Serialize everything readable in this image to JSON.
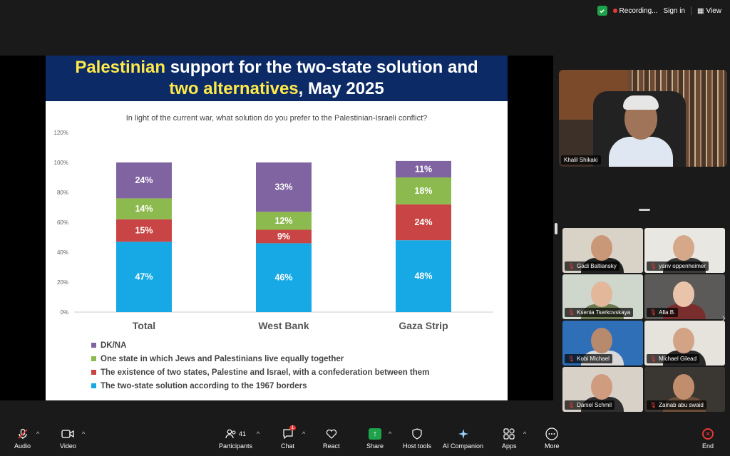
{
  "topbar": {
    "recording_label": "Recording...",
    "sign_in_label": "Sign in",
    "view_label": "View",
    "colors": {
      "shield": "#1fa34a",
      "recording_dot": "#e53935"
    }
  },
  "slide": {
    "title_line1_highlight": "Palestinian",
    "title_line1_rest": " support for the two-state solution and",
    "title_line2_highlight": "two alternatives",
    "title_line2_rest": ", May 2025",
    "question": "In light of the current war, what solution do you prefer to the Palestinian-Israeli conflict?",
    "colors": {
      "header_bg": "#0c2b66",
      "highlight": "#ffe94a"
    }
  },
  "chart_data": {
    "type": "bar",
    "stacked": true,
    "title": "",
    "xlabel": "",
    "ylabel": "",
    "ylim": [
      0,
      120
    ],
    "y_ticks": [
      "0%",
      "20%",
      "40%",
      "60%",
      "80%",
      "100%",
      "120%"
    ],
    "categories": [
      "Total",
      "West Bank",
      "Gaza Strip"
    ],
    "series": [
      {
        "name": "The two-state solution according to the 1967 borders",
        "color": "#16a9e5",
        "values": [
          47,
          46,
          48
        ],
        "labels": [
          "47%",
          "46%",
          "48%"
        ]
      },
      {
        "name": "The existence of two states, Palestine and Israel, with a confederation between them",
        "color": "#c94545",
        "values": [
          15,
          9,
          24
        ],
        "labels": [
          "15%",
          "9%",
          "24%"
        ]
      },
      {
        "name": "One state in which Jews and Palestinians live equally together",
        "color": "#8cba4e",
        "values": [
          14,
          12,
          18
        ],
        "labels": [
          "14%",
          "12%",
          "18%"
        ]
      },
      {
        "name": "DK/NA",
        "color": "#8064a2",
        "values": [
          24,
          33,
          11
        ],
        "labels": [
          "24%",
          "33%",
          "11%"
        ]
      }
    ],
    "legend_order": [
      "DK/NA",
      "One state in which Jews and Palestinians live equally together",
      "The existence of two states, Palestine and Israel, with a confederation between them",
      "The two-state solution according to the 1967 borders"
    ],
    "legend_placement": "bottom-left",
    "grid": false
  },
  "participants": {
    "speaker": {
      "name": "Khalil Shikaki"
    },
    "gallery": [
      {
        "name": "Gadi Baltiansky",
        "bg": "#d9d2c6",
        "skin": "#c99878",
        "shirt": "#222"
      },
      {
        "name": "yariv oppenheimer",
        "bg": "#e9e7e2",
        "skin": "#d4a888",
        "shirt": "#3b3b3b"
      },
      {
        "name": "Ksenia Tserkovskaya",
        "bg": "#cfd6cc",
        "skin": "#e2b79a",
        "shirt": "#6c7a52"
      },
      {
        "name": "Alla B.",
        "bg": "#5c5a58",
        "skin": "#e9c4aa",
        "shirt": "#7a2d2d"
      },
      {
        "name": "Kobi Michael",
        "bg": "#2e6fb8",
        "skin": "#b78a6e",
        "shirt": "#d8d8d8"
      },
      {
        "name": "Michael Gilead",
        "bg": "#e6e2dc",
        "skin": "#d3a386",
        "shirt": "#2a2a2a"
      },
      {
        "name": "Daniel Schmil",
        "bg": "#d7d1c7",
        "skin": "#cf9c80",
        "shirt": "#2e2e2e"
      },
      {
        "name": "Zainab abu swaid",
        "bg": "#3a3632",
        "skin": "#c18e6d",
        "shirt": "#6a4e3a"
      }
    ]
  },
  "toolbar": {
    "audio": "Audio",
    "video": "Video",
    "participants": "Participants",
    "participants_count": "41",
    "chat": "Chat",
    "chat_badge": "1",
    "react": "React",
    "share": "Share",
    "host_tools": "Host tools",
    "ai_companion": "AI Companion",
    "apps": "Apps",
    "more": "More",
    "end": "End"
  }
}
